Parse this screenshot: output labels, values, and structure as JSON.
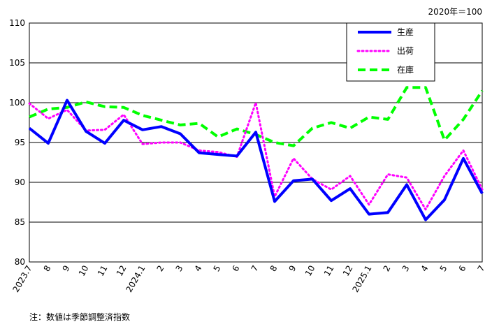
{
  "unit_label": "2020年＝100",
  "note": "注：数値は季節調整済指数",
  "chart_data": {
    "type": "line",
    "title": "",
    "xlabel": "",
    "ylabel": "",
    "ylim": [
      80,
      110
    ],
    "yticks": [
      80,
      85,
      90,
      95,
      100,
      105,
      110
    ],
    "grid": true,
    "legend_position": "top-right",
    "categories": [
      "2023.7",
      "8",
      "9",
      "10",
      "11",
      "12",
      "2024.1",
      "2",
      "3",
      "4",
      "5",
      "6",
      "7",
      "8",
      "9",
      "10",
      "11",
      "12",
      "2025.1",
      "2",
      "3",
      "4",
      "5",
      "6",
      "7"
    ],
    "series": [
      {
        "name": "生産",
        "color": "#0000ff",
        "style": "solid",
        "values": [
          96.8,
          94.9,
          100.3,
          96.4,
          94.9,
          97.8,
          96.6,
          97.0,
          96.1,
          93.7,
          93.5,
          93.3,
          96.3,
          87.6,
          90.2,
          90.4,
          87.7,
          89.2,
          86.0,
          86.2,
          89.7,
          85.3,
          87.8,
          93.0,
          88.6
        ]
      },
      {
        "name": "出荷",
        "color": "#ff00ff",
        "style": "dotted",
        "values": [
          99.9,
          98.0,
          99.1,
          96.5,
          96.6,
          98.5,
          94.8,
          95.0,
          95.0,
          94.0,
          93.8,
          93.2,
          100.0,
          88.2,
          93.0,
          90.4,
          89.1,
          90.8,
          87.2,
          91.0,
          90.6,
          86.6,
          90.8,
          94.0,
          89.1
        ]
      },
      {
        "name": "在庫",
        "color": "#00ff00",
        "style": "dashed",
        "values": [
          98.2,
          99.2,
          99.4,
          100.1,
          99.5,
          99.4,
          98.4,
          97.8,
          97.2,
          97.4,
          95.7,
          96.7,
          96.0,
          95.0,
          94.6,
          96.8,
          97.5,
          96.8,
          98.2,
          97.9,
          101.9,
          101.9,
          95.3,
          97.9,
          101.5
        ]
      }
    ]
  }
}
